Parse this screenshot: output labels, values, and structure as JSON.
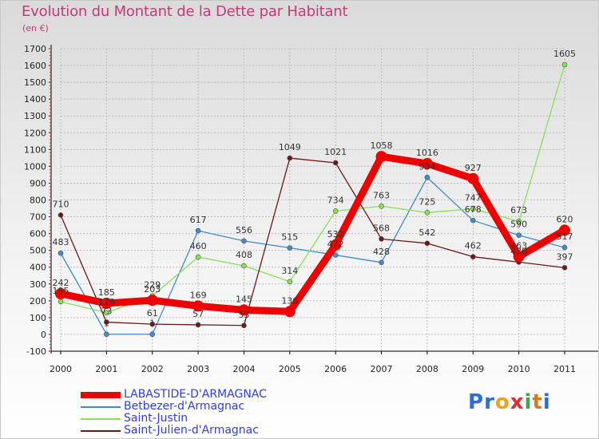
{
  "title": "Evolution du Montant de la Dette par Habitant",
  "unit": "(en €)",
  "logo": {
    "letters": [
      "P",
      "r",
      "o",
      "x",
      "i",
      "t",
      "i"
    ],
    "colors": [
      "#2d6fd0",
      "#2d6fd0",
      "#f0a020",
      "#d93030",
      "#39a845",
      "#e07818",
      "#2d6fd0"
    ]
  },
  "chart_data": {
    "type": "line",
    "x": [
      "2000",
      "2001",
      "2002",
      "2003",
      "2004",
      "2005",
      "2006",
      "2007",
      "2008",
      "2009",
      "2010",
      "2011"
    ],
    "ylim": [
      -100,
      1700
    ],
    "yticks": [
      -100,
      0,
      100,
      200,
      300,
      400,
      500,
      600,
      700,
      800,
      900,
      1000,
      1100,
      1200,
      1300,
      1400,
      1500,
      1600,
      1700
    ],
    "grid": true,
    "legend_position": "bottom-left",
    "series": [
      {
        "name": "LABASTIDE-D'ARMAGNAC",
        "color": "#ee0000",
        "bold": true,
        "values": [
          242,
          185,
          203,
          169,
          145,
          136,
          532,
          1058,
          1016,
          927,
          463,
          620
        ]
      },
      {
        "name": "Betbezer-d'Armagnac",
        "color": "#3f8bcc",
        "values": [
          483,
          1,
          1,
          617,
          556,
          515,
          472,
          428,
          934,
          678,
          590,
          517
        ]
      },
      {
        "name": "Saint-Justin",
        "color": "#88e055",
        "values": [
          195,
          129,
          229,
          460,
          408,
          314,
          734,
          763,
          725,
          747,
          673,
          1605
        ]
      },
      {
        "name": "Saint-Julien-d'Armagnac",
        "color": "#6b1818",
        "values": [
          710,
          73,
          61,
          57,
          53,
          1049,
          1021,
          568,
          542,
          462,
          430,
          397
        ]
      }
    ],
    "point_labels": [
      [
        "242",
        "185",
        "203",
        "169",
        "145",
        "136",
        "532",
        "1058",
        "1016",
        "927",
        "463",
        "620"
      ],
      [
        "483",
        "1",
        "1",
        "617",
        "556",
        "515",
        "472",
        "428",
        "934",
        "678",
        "590",
        "517"
      ],
      [
        "195",
        "129",
        "229",
        "460",
        "408",
        "314",
        "734",
        "763",
        "725",
        "747",
        "673",
        "1605"
      ],
      [
        "710",
        "73",
        "61",
        "57",
        "53",
        "1049",
        "1021",
        "568",
        "542",
        "462",
        "430",
        "397"
      ]
    ]
  }
}
